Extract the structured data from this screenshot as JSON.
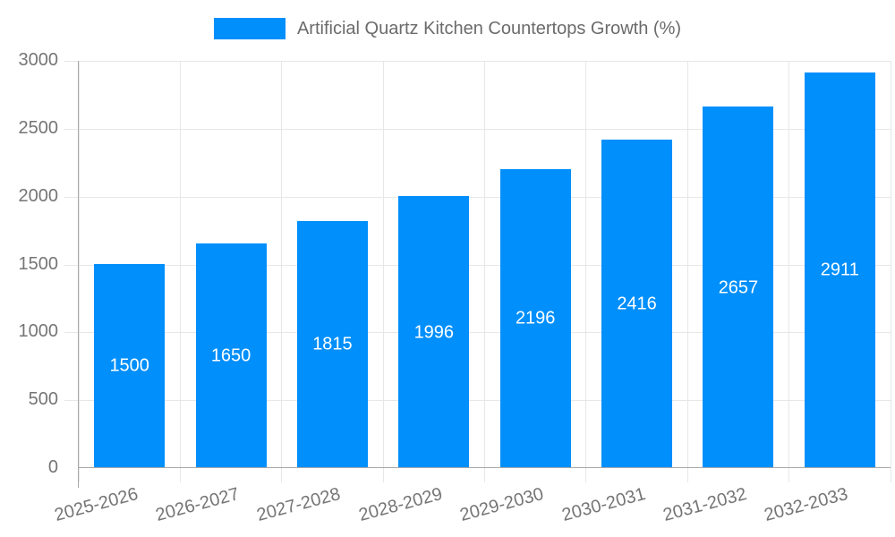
{
  "legend": {
    "position": "top",
    "series_label": "Artificial Quartz Kitchen Countertops Growth (%)"
  },
  "chart_data": {
    "type": "bar",
    "title": "Artificial Quartz Kitchen Countertops Growth (%)",
    "categories": [
      "2025-2026",
      "2026-2027",
      "2027-2028",
      "2028-2029",
      "2029-2030",
      "2030-2031",
      "2031-2032",
      "2032-2033"
    ],
    "values": [
      1500,
      1650,
      1815,
      1996,
      2196,
      2416,
      2657,
      2911
    ],
    "xlabel": "",
    "ylabel": "",
    "ylim": [
      0,
      3000
    ],
    "yticks": [
      0,
      500,
      1000,
      1500,
      2000,
      2500,
      3000
    ],
    "grid": true,
    "legend_position": "top",
    "data_labels": "inside-center",
    "x_label_rotation_deg": -15,
    "colors": {
      "bar": "#008FFB",
      "gridline": "#e7e7e7",
      "axis_line": "#a8a8a8",
      "axis_label": "#757575",
      "legend_label": "#6b6b6b",
      "data_label": "#ffffff"
    }
  }
}
